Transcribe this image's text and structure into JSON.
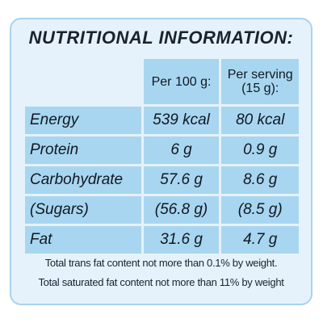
{
  "title": "NUTRITIONAL INFORMATION:",
  "headers": {
    "per100": "Per 100 g:",
    "perServingLine1": "Per serving",
    "perServingLine2": "(15 g):"
  },
  "rows": [
    {
      "label": "Energy",
      "per100": "539 kcal",
      "perServing": "80 kcal"
    },
    {
      "label": "Protein",
      "per100": "6 g",
      "perServing": "0.9 g"
    },
    {
      "label": "Carbohydrate",
      "per100": "57.6 g",
      "perServing": "8.6 g"
    },
    {
      "label": "(Sugars)",
      "per100": "(56.8 g)",
      "perServing": "(8.5 g)"
    },
    {
      "label": "Fat",
      "per100": "31.6 g",
      "perServing": "4.7 g"
    }
  ],
  "footnotes": [
    "Total trans fat content not more than 0.1% by weight.",
    "Total saturated fat content not more than 11% by weight"
  ],
  "colors": {
    "panel": "#e6f2fb",
    "cell": "#a8d6f0",
    "border": "#a9d2ee"
  }
}
